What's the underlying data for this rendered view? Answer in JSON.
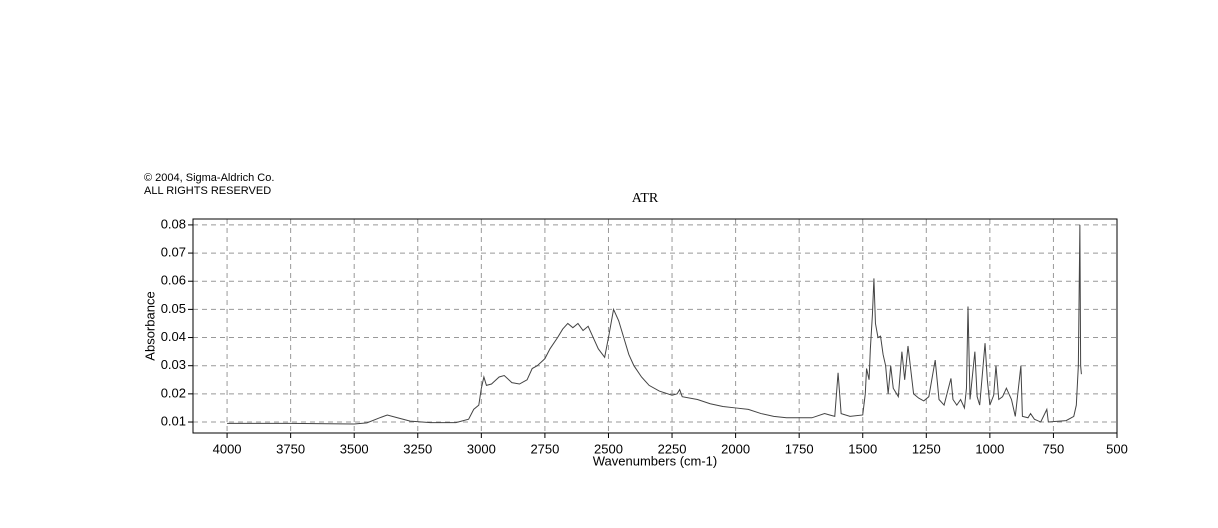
{
  "chart_data": {
    "type": "line",
    "copyright": [
      "© 2004, Sigma-Aldrich Co.",
      "ALL RIGHTS RESERVED"
    ],
    "title": "ATR",
    "xlabel": "Wavenumbers (cm-1)",
    "ylabel": "Absorbance",
    "color": "#444444",
    "grid": true,
    "xlim": [
      4134,
      500
    ],
    "ylim": [
      0.0061,
      0.0821
    ],
    "xticks": [
      4000,
      3750,
      3500,
      3250,
      3000,
      2750,
      2500,
      2250,
      2000,
      1750,
      1500,
      1250,
      1000,
      750,
      500
    ],
    "yticks": [
      0.01,
      0.02,
      0.03,
      0.04,
      0.05,
      0.06,
      0.07,
      0.08
    ],
    "x": [
      4000,
      3750,
      3500,
      3450,
      3400,
      3370,
      3330,
      3280,
      3200,
      3100,
      3050,
      3030,
      3010,
      3000,
      2990,
      2980,
      2960,
      2930,
      2910,
      2880,
      2850,
      2820,
      2800,
      2780,
      2750,
      2730,
      2700,
      2680,
      2660,
      2640,
      2620,
      2600,
      2580,
      2560,
      2540,
      2515,
      2500,
      2480,
      2460,
      2440,
      2420,
      2400,
      2370,
      2340,
      2300,
      2250,
      2230,
      2220,
      2210,
      2150,
      2100,
      2050,
      2000,
      1950,
      1900,
      1850,
      1800,
      1700,
      1650,
      1630,
      1610,
      1597,
      1585,
      1550,
      1500,
      1490,
      1485,
      1475,
      1470,
      1462,
      1456,
      1450,
      1440,
      1430,
      1420,
      1410,
      1400,
      1390,
      1380,
      1360,
      1346,
      1335,
      1322,
      1300,
      1280,
      1260,
      1240,
      1215,
      1200,
      1180,
      1153,
      1145,
      1130,
      1115,
      1100,
      1092,
      1086,
      1078,
      1059,
      1050,
      1040,
      1019,
      1010,
      1000,
      985,
      976,
      965,
      950,
      935,
      915,
      900,
      878,
      872,
      850,
      840,
      825,
      800,
      776,
      770,
      700,
      670,
      660,
      652,
      646,
      643,
      640
    ],
    "y": [
      0.0095,
      0.0095,
      0.0093,
      0.0097,
      0.0115,
      0.0125,
      0.0115,
      0.0103,
      0.0098,
      0.0098,
      0.011,
      0.0145,
      0.016,
      0.022,
      0.026,
      0.023,
      0.0235,
      0.026,
      0.0265,
      0.024,
      0.0235,
      0.025,
      0.029,
      0.03,
      0.0325,
      0.036,
      0.04,
      0.043,
      0.045,
      0.0435,
      0.045,
      0.0425,
      0.044,
      0.04,
      0.036,
      0.033,
      0.04,
      0.05,
      0.046,
      0.04,
      0.034,
      0.03,
      0.026,
      0.023,
      0.021,
      0.0195,
      0.02,
      0.0215,
      0.019,
      0.018,
      0.0165,
      0.0155,
      0.015,
      0.0145,
      0.013,
      0.012,
      0.0115,
      0.0115,
      0.013,
      0.0125,
      0.012,
      0.0275,
      0.013,
      0.012,
      0.0125,
      0.02,
      0.029,
      0.025,
      0.036,
      0.048,
      0.061,
      0.045,
      0.04,
      0.0405,
      0.034,
      0.03,
      0.02,
      0.03,
      0.022,
      0.019,
      0.035,
      0.025,
      0.037,
      0.02,
      0.0185,
      0.0175,
      0.019,
      0.032,
      0.018,
      0.016,
      0.0255,
      0.018,
      0.016,
      0.018,
      0.015,
      0.022,
      0.051,
      0.018,
      0.035,
      0.019,
      0.016,
      0.038,
      0.025,
      0.016,
      0.0195,
      0.03,
      0.018,
      0.019,
      0.022,
      0.018,
      0.012,
      0.03,
      0.012,
      0.0115,
      0.013,
      0.011,
      0.01,
      0.0145,
      0.01,
      0.0105,
      0.012,
      0.016,
      0.03,
      0.08,
      0.03,
      0.027
    ]
  }
}
